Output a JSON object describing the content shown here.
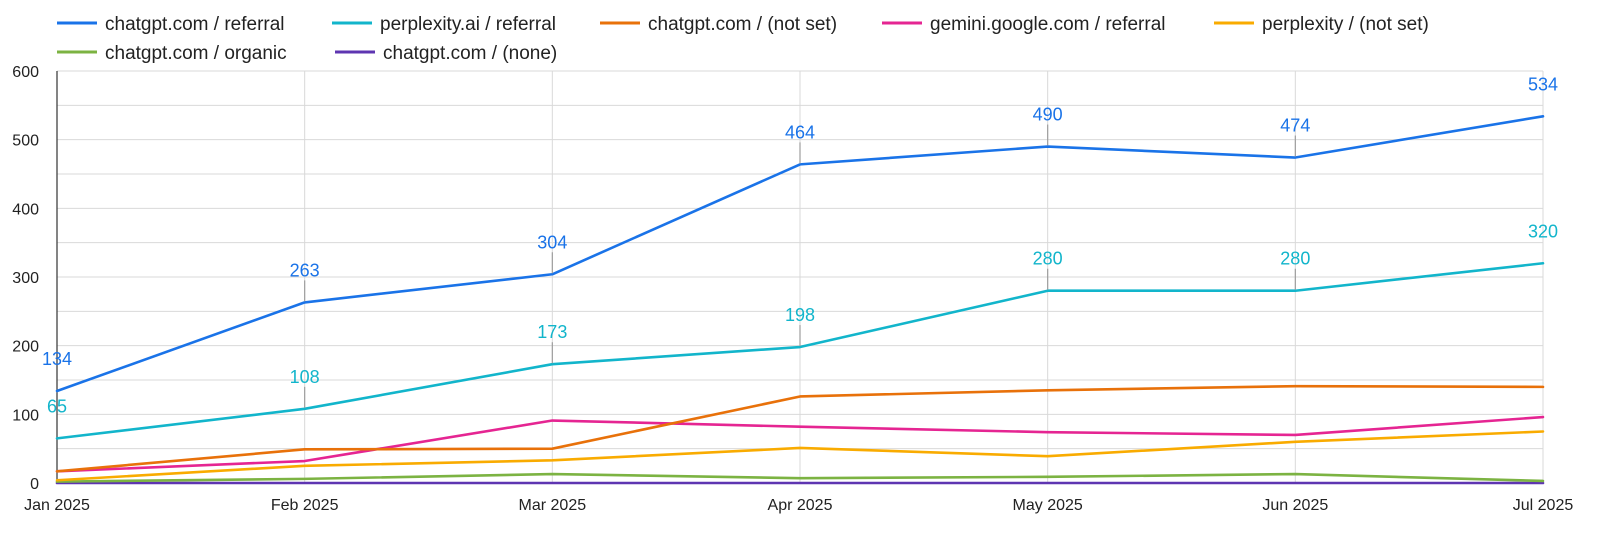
{
  "chart_data": {
    "type": "line",
    "categories": [
      "Jan 2025",
      "Feb 2025",
      "Mar 2025",
      "Apr 2025",
      "May 2025",
      "Jun 2025",
      "Jul 2025"
    ],
    "ylim": [
      0,
      600
    ],
    "yticks": [
      0,
      100,
      200,
      300,
      400,
      500,
      600
    ],
    "grid": true,
    "legend_position": "top",
    "series": [
      {
        "name": "chatgpt.com / referral",
        "color": "#1a73e8",
        "values": [
          134,
          263,
          304,
          464,
          490,
          474,
          534
        ],
        "labeled": true
      },
      {
        "name": "perplexity.ai / referral",
        "color": "#12b5cb",
        "values": [
          65,
          108,
          173,
          198,
          280,
          280,
          320
        ],
        "labeled": true
      },
      {
        "name": "chatgpt.com / (not set)",
        "color": "#e8710a",
        "values": [
          17,
          49,
          50,
          126,
          135,
          141,
          140
        ],
        "labeled": false
      },
      {
        "name": "gemini.google.com / referral",
        "color": "#e52592",
        "values": [
          17,
          32,
          91,
          82,
          74,
          70,
          96
        ],
        "labeled": false
      },
      {
        "name": "perplexity / (not set)",
        "color": "#f9ab00",
        "values": [
          4,
          25,
          33,
          51,
          39,
          60,
          75
        ],
        "labeled": false
      },
      {
        "name": "chatgpt.com / organic",
        "color": "#7cb342",
        "values": [
          2,
          6,
          13,
          7,
          9,
          13,
          3
        ],
        "labeled": false
      },
      {
        "name": "chatgpt.com / (none)",
        "color": "#5e35b1",
        "values": [
          0,
          0,
          0,
          0,
          0,
          0,
          0
        ],
        "labeled": false
      }
    ]
  }
}
